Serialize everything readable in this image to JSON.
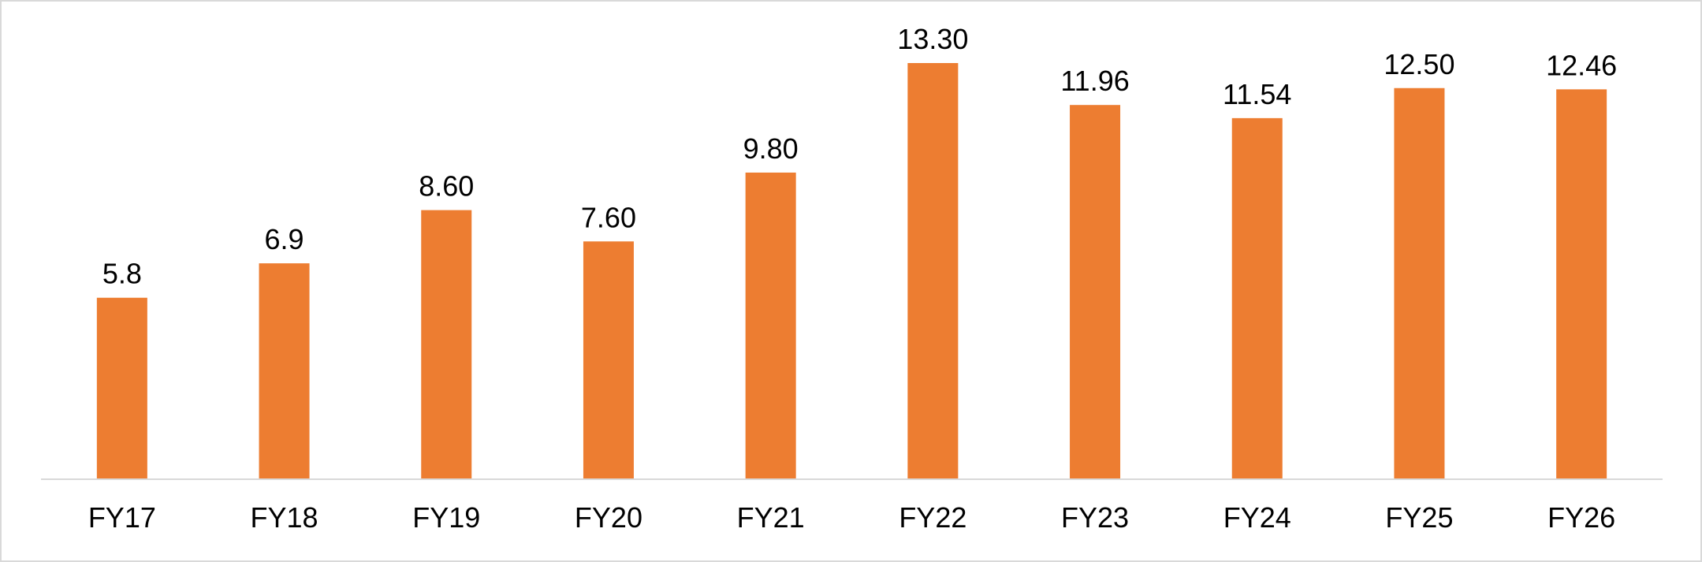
{
  "chart_data": {
    "type": "bar",
    "categories": [
      "FY17",
      "FY18",
      "FY19",
      "FY20",
      "FY21",
      "FY22",
      "FY23",
      "FY24",
      "FY25",
      "FY26"
    ],
    "values": [
      5.8,
      6.9,
      8.6,
      7.6,
      9.8,
      13.3,
      11.96,
      11.54,
      12.5,
      12.46
    ],
    "data_labels": [
      "5.8",
      "6.9",
      "8.60",
      "7.60",
      "9.80",
      "13.30",
      "11.96",
      "11.54",
      "12.50",
      "12.46"
    ],
    "title": "",
    "xlabel": "",
    "ylabel": "",
    "ylim": [
      0,
      13.3
    ],
    "grid": false,
    "legend": "none",
    "bar_color": "#ED7D31",
    "axis_color": "#d9d9d9",
    "label_color": "#000000"
  }
}
